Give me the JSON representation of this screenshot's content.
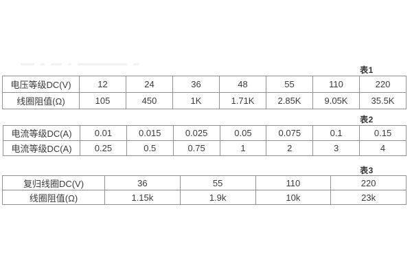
{
  "page": {
    "background": "#ffffff"
  },
  "colors": {
    "table_outer_border": "#757575",
    "table_inner_border": "#8f8f8f",
    "cell_text": "#3a3a3a",
    "tag_text": "#333333"
  },
  "tables": [
    {
      "tag": "表1",
      "rows": [
        {
          "label": "电压等级DC(V)",
          "values": [
            "12",
            "24",
            "36",
            "48",
            "55",
            "110",
            "220"
          ]
        },
        {
          "label": "线圈阻值(Ω)",
          "values": [
            "105",
            "450",
            "1K",
            "1.71K",
            "2.85K",
            "9.05K",
            "35.5K"
          ]
        }
      ]
    },
    {
      "tag": "表2",
      "rows": [
        {
          "label": "电流等级DC(A)",
          "values": [
            "0.01",
            "0.015",
            "0.025",
            "0.05",
            "0.075",
            "0.1",
            "0.15"
          ]
        },
        {
          "label": "电流等级DC(A)",
          "values": [
            "0.25",
            "0.5",
            "0.75",
            "1",
            "2",
            "3",
            "4"
          ]
        }
      ]
    },
    {
      "tag": "表3",
      "rows": [
        {
          "label": "复归线圈DC(V)",
          "values": [
            "36",
            "55",
            "110",
            "220"
          ]
        },
        {
          "label": "线圈阻值(Ω)",
          "values": [
            "1.15k",
            "1.9k",
            "10k",
            "23k"
          ]
        }
      ]
    }
  ]
}
